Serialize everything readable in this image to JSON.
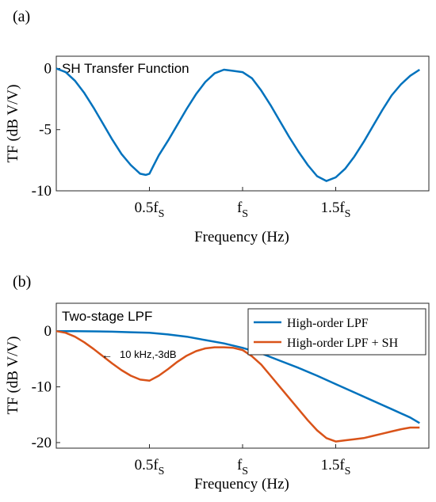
{
  "chart_data": [
    {
      "panel_label": "(a)",
      "type": "line",
      "title": "SH Transfer Function",
      "xlabel": "Frequency (Hz)",
      "ylabel": "TF (dB V/V)",
      "xlim": [
        0,
        2
      ],
      "ylim": [
        -10,
        1
      ],
      "x_ticks": [
        {
          "x": 0.5,
          "label": "0.5f",
          "sub": "S"
        },
        {
          "x": 1.0,
          "label": "f",
          "sub": "S"
        },
        {
          "x": 1.5,
          "label": "1.5f",
          "sub": "S"
        }
      ],
      "y_ticks": [
        {
          "y": 0,
          "label": "0"
        },
        {
          "y": -5,
          "label": "-5"
        },
        {
          "y": -10,
          "label": "-10"
        }
      ],
      "grid": false,
      "series": [
        {
          "color": "#0072bd",
          "x": [
            0,
            0.05,
            0.1,
            0.15,
            0.2,
            0.25,
            0.3,
            0.35,
            0.4,
            0.45,
            0.48,
            0.5,
            0.52,
            0.55,
            0.6,
            0.65,
            0.7,
            0.75,
            0.8,
            0.85,
            0.9,
            0.95,
            1.0,
            1.05,
            1.1,
            1.15,
            1.2,
            1.25,
            1.3,
            1.35,
            1.4,
            1.45,
            1.5,
            1.55,
            1.6,
            1.65,
            1.7,
            1.75,
            1.8,
            1.85,
            1.9,
            1.95
          ],
          "y": [
            0,
            -0.3,
            -1.0,
            -2.0,
            -3.2,
            -4.5,
            -5.8,
            -7.0,
            -7.9,
            -8.6,
            -8.7,
            -8.6,
            -8.0,
            -7.1,
            -5.9,
            -4.6,
            -3.3,
            -2.1,
            -1.1,
            -0.4,
            -0.1,
            -0.2,
            -0.3,
            -0.8,
            -1.8,
            -3.0,
            -4.3,
            -5.6,
            -6.8,
            -7.9,
            -8.8,
            -9.2,
            -8.9,
            -8.2,
            -7.2,
            -6.0,
            -4.7,
            -3.4,
            -2.2,
            -1.3,
            -0.6,
            -0.1
          ]
        }
      ]
    },
    {
      "panel_label": "(b)",
      "type": "line",
      "title": "Two-stage LPF",
      "xlabel": "Frequency (Hz)",
      "ylabel": "TF (dB V/V)",
      "xlim": [
        0,
        2
      ],
      "ylim": [
        -21,
        5
      ],
      "x_ticks": [
        {
          "x": 0.5,
          "label": "0.5f",
          "sub": "S"
        },
        {
          "x": 1.0,
          "label": "f",
          "sub": "S"
        },
        {
          "x": 1.5,
          "label": "1.5f",
          "sub": "S"
        }
      ],
      "y_ticks": [
        {
          "y": 0,
          "label": "0"
        },
        {
          "y": -10,
          "label": "-10"
        },
        {
          "y": -20,
          "label": "-20"
        }
      ],
      "grid": false,
      "legend_position": "top-right",
      "annotation": {
        "text": "10 kHz,-3dB",
        "arrow": "←"
      },
      "series": [
        {
          "name": "High-order LPF",
          "color": "#0072bd",
          "x": [
            0,
            0.1,
            0.2,
            0.3,
            0.4,
            0.5,
            0.6,
            0.7,
            0.8,
            0.9,
            1.0,
            1.1,
            1.2,
            1.3,
            1.4,
            1.5,
            1.6,
            1.7,
            1.8,
            1.9,
            1.95
          ],
          "y": [
            0,
            0,
            -0.05,
            -0.1,
            -0.2,
            -0.3,
            -0.6,
            -1.0,
            -1.6,
            -2.2,
            -3.0,
            -4.0,
            -5.3,
            -6.6,
            -8.0,
            -9.5,
            -11.0,
            -12.5,
            -14.0,
            -15.5,
            -16.5
          ]
        },
        {
          "name": "High-order LPF + SH",
          "color": "#d95319",
          "x": [
            0,
            0.05,
            0.1,
            0.15,
            0.2,
            0.25,
            0.3,
            0.35,
            0.4,
            0.45,
            0.5,
            0.55,
            0.6,
            0.65,
            0.7,
            0.75,
            0.8,
            0.85,
            0.9,
            0.95,
            1.0,
            1.05,
            1.1,
            1.15,
            1.2,
            1.25,
            1.3,
            1.35,
            1.4,
            1.45,
            1.5,
            1.55,
            1.6,
            1.65,
            1.7,
            1.75,
            1.8,
            1.85,
            1.9,
            1.95
          ],
          "y": [
            0,
            -0.3,
            -1.0,
            -2.0,
            -3.2,
            -4.5,
            -5.8,
            -7.0,
            -8.0,
            -8.7,
            -8.9,
            -8.0,
            -6.8,
            -5.5,
            -4.4,
            -3.6,
            -3.1,
            -2.9,
            -2.9,
            -3.0,
            -3.4,
            -4.5,
            -6.0,
            -8.0,
            -10.0,
            -12.0,
            -14.0,
            -16.0,
            -17.8,
            -19.2,
            -19.8,
            -19.6,
            -19.4,
            -19.2,
            -18.8,
            -18.4,
            -18.0,
            -17.6,
            -17.3,
            -17.3
          ]
        }
      ]
    }
  ]
}
